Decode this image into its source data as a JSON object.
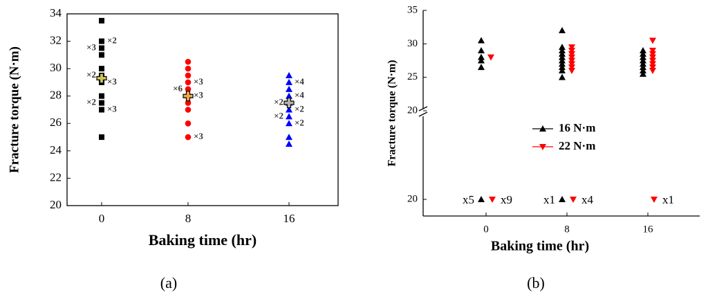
{
  "chart_data": [
    {
      "type": "scatter",
      "caption": "(a)",
      "x_label": "Baking time (hr)",
      "y_label": "Fracture torque (N·m)",
      "categories": [
        "0",
        "8",
        "16"
      ],
      "ylim": [
        20,
        34
      ],
      "yticks": [
        20,
        22,
        24,
        26,
        28,
        30,
        32,
        34
      ],
      "series": [
        {
          "marker": "square",
          "color": "#000000",
          "values": [
            [
              33.5,
              32,
              31.5,
              31,
              30,
              29.5,
              29,
              28,
              27.5,
              27,
              25
            ],
            null,
            null
          ],
          "labels_left": [
            {
              "label": "×3",
              "y": 31.5
            },
            {
              "label": "×2",
              "y": 29.5
            },
            {
              "label": "×2",
              "y": 27.5
            }
          ],
          "labels_right": [
            {
              "label": "×2",
              "y": 32
            },
            {
              "label": "×3",
              "y": 29
            },
            {
              "label": "×3",
              "y": 27
            }
          ]
        },
        {
          "marker": "circle",
          "color": "#ff0000",
          "values": [
            null,
            [
              30.5,
              30,
              29.5,
              29,
              28.5,
              28,
              27.5,
              27,
              26,
              25
            ],
            null
          ],
          "labels_left": [
            {
              "label": "×6",
              "y": 28.5
            }
          ],
          "labels_right": [
            {
              "label": "×3",
              "y": 29
            },
            {
              "label": "×3",
              "y": 28
            },
            {
              "label": "×3",
              "y": 25
            }
          ]
        },
        {
          "marker": "triangle-up",
          "color": "#0000ff",
          "values": [
            null,
            null,
            [
              29.5,
              29,
              28.5,
              28,
              27.5,
              27,
              26.5,
              26,
              25,
              24.5
            ]
          ],
          "labels_left": [
            {
              "label": "×2",
              "y": 27.5
            },
            {
              "label": "×2",
              "y": 26.5
            }
          ],
          "labels_right": [
            {
              "label": "×4",
              "y": 29
            },
            {
              "label": "×4",
              "y": 28
            },
            {
              "label": "×2",
              "y": 27
            },
            {
              "label": "×2",
              "y": 26
            }
          ]
        },
        {
          "marker": "plus",
          "colors": [
            "#cfc25a",
            "#f0a848",
            "#b4b4a8"
          ],
          "values": [
            [
              29.3
            ],
            [
              28.0
            ],
            [
              27.5
            ]
          ]
        }
      ]
    },
    {
      "type": "scatter",
      "caption": "(b)",
      "x_label": "Baking time (hr)",
      "y_label": "Fracture torque (N·m)",
      "categories": [
        "0",
        "8",
        "16"
      ],
      "ylim": [
        20,
        35
      ],
      "yticks": [
        20,
        25,
        30,
        35
      ],
      "ylim_lower": [
        19,
        25
      ],
      "yticks_lower": [
        20
      ],
      "legend": "center",
      "series": [
        {
          "name": "16 N·m",
          "marker": "triangle-up",
          "color": "#000000",
          "values": [
            [
              30.5,
              29,
              28,
              27.5,
              26.5
            ],
            [
              32,
              29.5,
              29,
              28.5,
              28,
              27.5,
              27,
              26.5,
              26,
              25
            ],
            [
              29,
              28.5,
              28,
              27.5,
              27,
              26.5,
              26,
              25.5
            ]
          ],
          "lower_values": [
            20,
            20,
            null
          ],
          "lower_labels": [
            "x5",
            "x1",
            null
          ]
        },
        {
          "name": "22 N·m",
          "marker": "triangle-down",
          "color": "#ff0000",
          "values": [
            [
              28
            ],
            [
              29.5,
              29,
              28.5,
              28,
              27.5,
              27,
              26.5,
              26
            ],
            [
              30.5,
              29,
              28.5,
              28,
              27.5,
              27,
              26.5,
              26
            ]
          ],
          "lower_values": [
            20,
            20,
            20
          ],
          "lower_labels": [
            "x9",
            "x4",
            "x1"
          ]
        }
      ]
    }
  ]
}
